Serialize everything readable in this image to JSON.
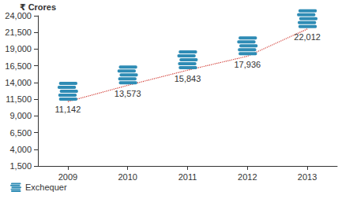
{
  "chart_data": {
    "type": "line",
    "y_label": "₹ Crores",
    "categories": [
      "2009",
      "2010",
      "2011",
      "2012",
      "2013"
    ],
    "series": [
      {
        "name": "Exchequer",
        "color": "#2f8cb5",
        "marker": "coins",
        "line_style": "dotted",
        "values": [
          11142,
          13573,
          15843,
          17936,
          22012
        ],
        "value_labels": [
          "11,142",
          "13,573",
          "15,843",
          "17,936",
          "22,012"
        ]
      }
    ],
    "ylim": [
      1500,
      24000
    ],
    "yticks": [
      {
        "value": 1500,
        "label": "1,500"
      },
      {
        "value": 4000,
        "label": "4,000"
      },
      {
        "value": 6500,
        "label": "6,500"
      },
      {
        "value": 9000,
        "label": "9,000"
      },
      {
        "value": 11500,
        "label": "11,500"
      },
      {
        "value": 14000,
        "label": "14,000"
      },
      {
        "value": 16500,
        "label": "16,500"
      },
      {
        "value": 19000,
        "label": "19,000"
      },
      {
        "value": 21500,
        "label": "21,500"
      },
      {
        "value": 24000,
        "label": "24,000"
      }
    ],
    "grid": false,
    "data_labels": true,
    "legend": "lower left"
  }
}
